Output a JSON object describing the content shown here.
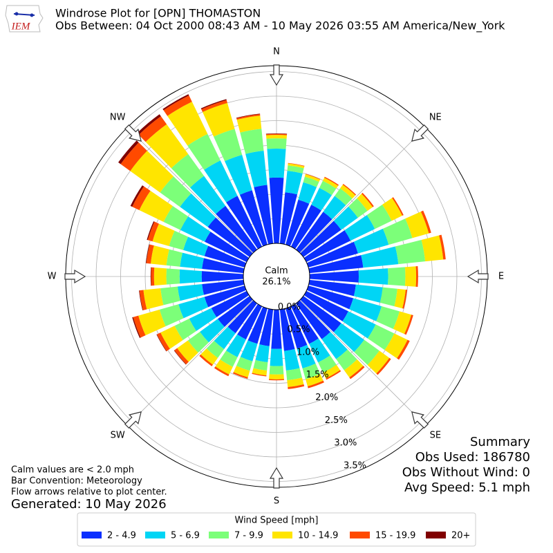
{
  "header": {
    "logo_text": "IEM",
    "title": "Windrose Plot for [OPN] THOMASTON",
    "subtitle": "Obs Between: 04 Oct 2000 08:43 AM - 10 May 2026 03:55 AM America/New_York"
  },
  "chart_data": {
    "type": "windrose",
    "directions": [
      0,
      10,
      20,
      30,
      40,
      50,
      60,
      70,
      80,
      90,
      100,
      110,
      120,
      130,
      140,
      150,
      160,
      170,
      180,
      190,
      200,
      210,
      220,
      230,
      240,
      250,
      260,
      270,
      280,
      290,
      300,
      310,
      320,
      330,
      340,
      350
    ],
    "compass_labels": [
      "N",
      "NE",
      "E",
      "SE",
      "S",
      "SW",
      "W",
      "NW"
    ],
    "rlim": [
      0,
      3.62
    ],
    "rticks": [
      {
        "value": 0,
        "label": "0.0%"
      },
      {
        "value": 0.5,
        "label": "0.5%"
      },
      {
        "value": 1,
        "label": "1.0%"
      },
      {
        "value": 1.5,
        "label": "1.5%"
      },
      {
        "value": 2,
        "label": "2.0%"
      },
      {
        "value": 2.5,
        "label": "2.5%"
      },
      {
        "value": 3,
        "label": "3.0%"
      },
      {
        "value": 3.5,
        "label": "3.5%"
      }
    ],
    "calm": {
      "label": "Calm",
      "value": 26.1,
      "value_label": "26.1%"
    },
    "legend_title": "Wind Speed [mph]",
    "series": [
      {
        "name": "2 - 4.9",
        "color": "#0a2fff",
        "values": [
          1.34,
          1.05,
          0.95,
          0.95,
          0.95,
          0.95,
          1.0,
          1.05,
          1.1,
          1.0,
          0.95,
          0.95,
          0.95,
          0.95,
          0.9,
          0.85,
          0.85,
          0.85,
          0.8,
          0.75,
          0.75,
          0.75,
          0.75,
          0.8,
          0.8,
          0.85,
          0.85,
          0.85,
          0.85,
          0.85,
          0.95,
          1.05,
          1.1,
          1.15,
          1.15,
          1.2
        ]
      },
      {
        "name": "5 - 6.9",
        "color": "#00d5f5",
        "values": [
          0.59,
          0.44,
          0.37,
          0.38,
          0.4,
          0.42,
          0.55,
          0.65,
          0.72,
          0.6,
          0.55,
          0.6,
          0.62,
          0.58,
          0.5,
          0.42,
          0.42,
          0.4,
          0.35,
          0.33,
          0.37,
          0.4,
          0.4,
          0.45,
          0.5,
          0.55,
          0.5,
          0.45,
          0.45,
          0.45,
          0.55,
          0.7,
          0.75,
          0.8,
          0.75,
          0.7
        ]
      },
      {
        "name": "7 - 9.9",
        "color": "#7cff79",
        "values": [
          0.21,
          0.11,
          0.12,
          0.16,
          0.19,
          0.24,
          0.38,
          0.5,
          0.55,
          0.35,
          0.3,
          0.38,
          0.42,
          0.38,
          0.28,
          0.23,
          0.23,
          0.2,
          0.17,
          0.17,
          0.2,
          0.22,
          0.22,
          0.3,
          0.33,
          0.4,
          0.35,
          0.27,
          0.28,
          0.3,
          0.38,
          0.5,
          0.55,
          0.6,
          0.55,
          0.45
        ]
      },
      {
        "name": "10 - 14.9",
        "color": "#ffe500",
        "values": [
          0.07,
          0.04,
          0.05,
          0.07,
          0.09,
          0.13,
          0.24,
          0.35,
          0.37,
          0.22,
          0.17,
          0.25,
          0.3,
          0.25,
          0.18,
          0.13,
          0.15,
          0.14,
          0.1,
          0.1,
          0.14,
          0.17,
          0.17,
          0.27,
          0.32,
          0.45,
          0.35,
          0.25,
          0.32,
          0.35,
          0.55,
          0.75,
          0.75,
          0.73,
          0.55,
          0.27
        ]
      },
      {
        "name": "15 - 19.9",
        "color": "#ff4a00",
        "values": [
          0.02,
          0.01,
          0.01,
          0.02,
          0.02,
          0.03,
          0.03,
          0.05,
          0.05,
          0.04,
          0.03,
          0.04,
          0.05,
          0.04,
          0.04,
          0.03,
          0.04,
          0.04,
          0.02,
          0.02,
          0.03,
          0.04,
          0.04,
          0.07,
          0.08,
          0.11,
          0.08,
          0.06,
          0.09,
          0.1,
          0.16,
          0.24,
          0.2,
          0.14,
          0.06,
          0.03
        ]
      },
      {
        "name": "20+",
        "color": "#800000",
        "values": [
          0.01,
          0,
          0,
          0,
          0,
          0,
          0,
          0,
          0,
          0,
          0,
          0,
          0,
          0,
          0,
          0,
          0,
          0,
          0,
          0,
          0,
          0,
          0,
          0.01,
          0.01,
          0.02,
          0.01,
          0.01,
          0.01,
          0.02,
          0.04,
          0.06,
          0.05,
          0.03,
          0.02,
          0.01
        ]
      }
    ]
  },
  "notes": [
    "Calm values are < 2.0 mph",
    "Bar Convention: Meteorology",
    "Flow arrows relative to plot center."
  ],
  "generated": "Generated: 10 May 2026",
  "summary": [
    "Summary",
    "Obs Used: 186780",
    "Obs Without Wind: 0",
    "Avg Speed: 5.1 mph"
  ]
}
